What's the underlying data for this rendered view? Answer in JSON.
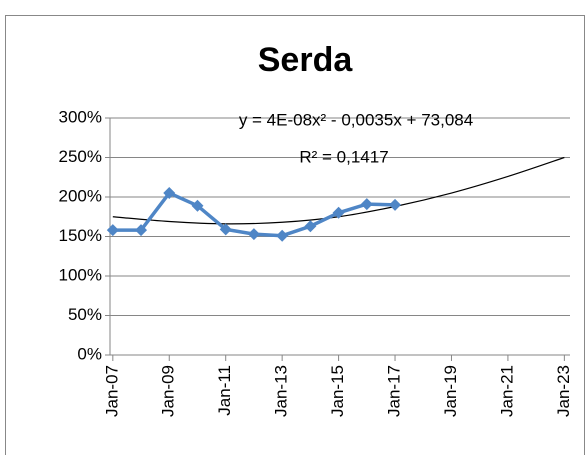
{
  "chart_data": {
    "type": "line",
    "title": "Serda",
    "x": [
      2007,
      2008,
      2009,
      2010,
      2011,
      2012,
      2013,
      2014,
      2015,
      2016,
      2017
    ],
    "series": [
      {
        "name": "Serda",
        "color": "#4f86c6",
        "values": [
          158,
          158,
          205,
          189,
          159,
          153,
          151,
          163,
          180,
          191,
          190
        ]
      }
    ],
    "trendline": {
      "color": "#000000",
      "x": [
        2007,
        2009,
        2011,
        2013,
        2015,
        2017,
        2019,
        2021,
        2023
      ],
      "values": [
        175,
        169,
        166,
        168,
        175,
        188,
        205,
        226,
        250
      ]
    },
    "annotations": [
      "y = 4E-08x² - 0,0035x + 73,084",
      "R² = 0,1417"
    ],
    "ylim": [
      0,
      300
    ],
    "yticks": [
      {
        "value": 0,
        "label": "0%"
      },
      {
        "value": 50,
        "label": "50%"
      },
      {
        "value": 100,
        "label": "100%"
      },
      {
        "value": 150,
        "label": "150%"
      },
      {
        "value": 200,
        "label": "200%"
      },
      {
        "value": 250,
        "label": "250%"
      },
      {
        "value": 300,
        "label": "300%"
      }
    ],
    "xlim": [
      2006.9,
      2023.2
    ],
    "xticks": [
      {
        "value": 2007,
        "label": "Jan-07"
      },
      {
        "value": 2009,
        "label": "Jan-09"
      },
      {
        "value": 2011,
        "label": "Jan-11"
      },
      {
        "value": 2013,
        "label": "Jan-13"
      },
      {
        "value": 2015,
        "label": "Jan-15"
      },
      {
        "value": 2017,
        "label": "Jan-17"
      },
      {
        "value": 2019,
        "label": "Jan-19"
      },
      {
        "value": 2021,
        "label": "Jan-21"
      },
      {
        "value": 2023,
        "label": "Jan-23"
      }
    ],
    "grid": true
  }
}
